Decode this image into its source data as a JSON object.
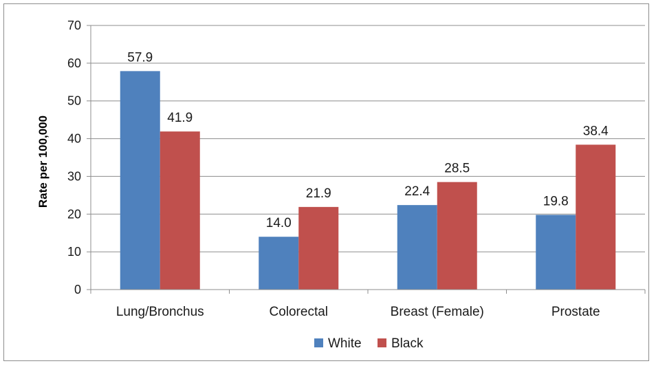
{
  "chart_data": {
    "type": "bar",
    "categories": [
      "Lung/Bronchus",
      "Colorectal",
      "Breast (Female)",
      "Prostate"
    ],
    "series": [
      {
        "name": "White",
        "values": [
          57.9,
          14.0,
          22.4,
          19.8
        ],
        "labels": [
          "57.9",
          "14.0",
          "22.4",
          "19.8"
        ],
        "color": "#4f81bd"
      },
      {
        "name": "Black",
        "values": [
          41.9,
          21.9,
          28.5,
          38.4
        ],
        "labels": [
          "41.9",
          "21.9",
          "28.5",
          "38.4"
        ],
        "color": "#c0504d"
      }
    ],
    "ylabel": "Rate per 100,000",
    "xlabel": "",
    "ylim": [
      0,
      70
    ],
    "yticks": [
      "0",
      "10",
      "20",
      "30",
      "40",
      "50",
      "60",
      "70"
    ],
    "grid": true,
    "legend_position": "bottom"
  }
}
